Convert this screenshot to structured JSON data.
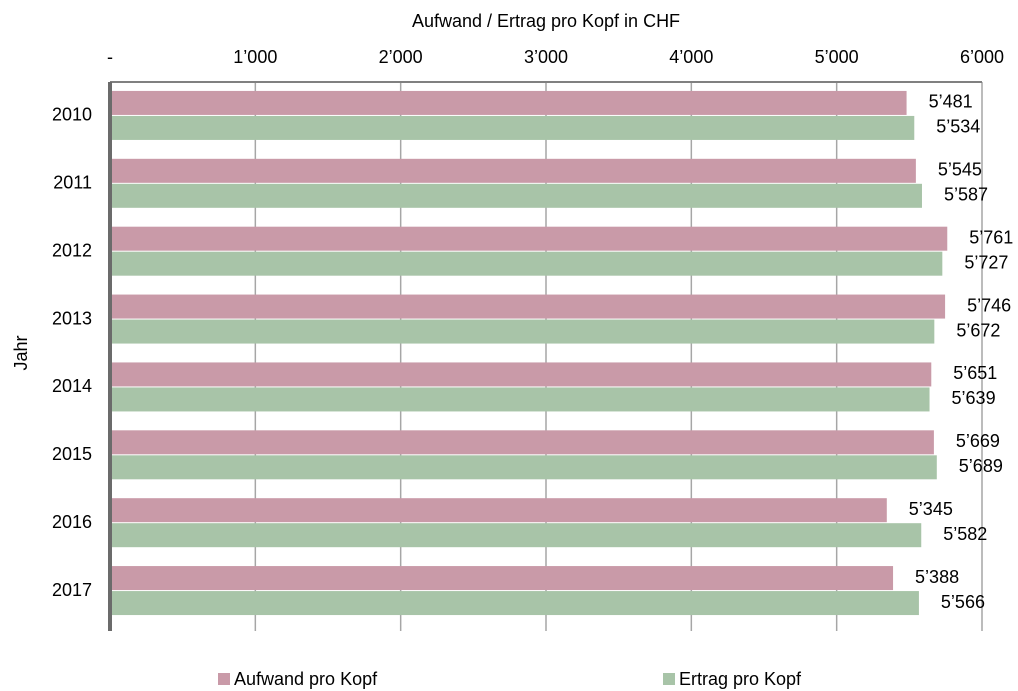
{
  "chart_data": {
    "type": "hbar",
    "x_label": "Aufwand / Ertrag pro Kopf in CHF",
    "y_label": "Jahr",
    "categories": [
      "2010",
      "2011",
      "2012",
      "2013",
      "2014",
      "2015",
      "2016",
      "2017"
    ],
    "series": [
      {
        "name": "Aufwand pro Kopf",
        "color": "#c99aa8",
        "values": [
          5481,
          5545,
          5761,
          5746,
          5651,
          5669,
          5345,
          5388
        ],
        "value_labels": [
          "5’481",
          "5’545",
          "5’761",
          "5’746",
          "5’651",
          "5’669",
          "5’345",
          "5’388"
        ]
      },
      {
        "name": "Ertrag pro Kopf",
        "color": "#a8c4a8",
        "values": [
          5534,
          5587,
          5727,
          5672,
          5639,
          5689,
          5582,
          5566
        ],
        "value_labels": [
          "5’534",
          "5’587",
          "5’727",
          "5’672",
          "5’639",
          "5’689",
          "5’582",
          "5’566"
        ]
      }
    ],
    "xlim": [
      0,
      6000
    ],
    "xticks": [
      {
        "value": 0,
        "label": "-"
      },
      {
        "value": 1000,
        "label": "1’000"
      },
      {
        "value": 2000,
        "label": "2’000"
      },
      {
        "value": 3000,
        "label": "3’000"
      },
      {
        "value": 4000,
        "label": "4’000"
      },
      {
        "value": 5000,
        "label": "5’000"
      },
      {
        "value": 6000,
        "label": "6’000"
      }
    ],
    "grid": true,
    "legend": "bottom"
  }
}
